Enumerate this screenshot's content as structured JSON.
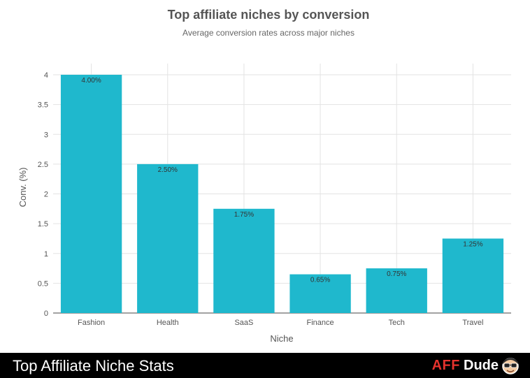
{
  "chart_data": {
    "type": "bar",
    "title": "Top affiliate niches by conversion",
    "subtitle": "Average conversion rates across major niches",
    "xlabel": "Niche",
    "ylabel": "Conv. (%)",
    "categories": [
      "Fashion",
      "Health",
      "SaaS",
      "Finance",
      "Tech",
      "Travel"
    ],
    "values": [
      4.0,
      2.5,
      1.75,
      0.65,
      0.75,
      1.25
    ],
    "data_labels": [
      "4.00%",
      "2.50%",
      "1.75%",
      "0.65%",
      "0.75%",
      "1.25%"
    ],
    "ylim": [
      0,
      4
    ],
    "yticks": [
      0,
      0.5,
      1,
      1.5,
      2,
      2.5,
      3,
      3.5,
      4
    ],
    "ytick_labels": [
      "0",
      "0.5",
      "1",
      "1.5",
      "2",
      "2.5",
      "3",
      "3.5",
      "4"
    ],
    "grid": true,
    "bar_color": "#1fb8cd"
  },
  "footer": {
    "title": "Top Affiliate Niche Stats",
    "brand_primary": "AFF",
    "brand_secondary": "Dude",
    "brand_color": "#e5322d",
    "mascot_icon": "mascot-face-icon"
  }
}
